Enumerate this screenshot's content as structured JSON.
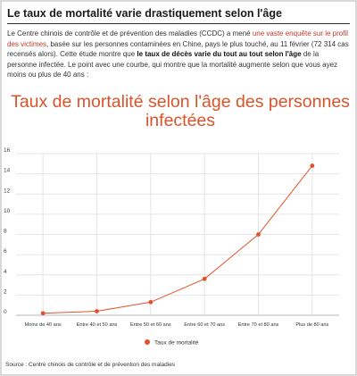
{
  "headline": "Le taux de mortalité varie drastiquement selon l'âge",
  "intro": {
    "t1": "Le Centre chinois de contrôle et de prévention des maladies (CCDC) a mené ",
    "link": "une vaste enquête sur le profil des victimes",
    "t2": ", basée sur les personnes contaminées en Chine, pays le plus touché, au 11 février (72 314 cas recensés alors). Cette étude montre que ",
    "bold": "le taux de décès varie du tout au tout selon l'âge",
    "t3": " de la personne infectée. Le point avec une courbe, qui montre que la mortalité augmente selon que vous ayez moins ou plus de 40 ans :"
  },
  "source": "Source : Centre chinois de contrôle et de prévention des maladies",
  "colors": {
    "series": "#e0522c",
    "title": "#d9542b"
  },
  "chart_data": {
    "type": "line",
    "title": "Taux de mortalité selon l'âge des personnes infectées",
    "categories": [
      "Moins de 40 ans",
      "Entre 40 et 50 ans",
      "Entre 50 et 60 ans",
      "Entre 60 et 70 ans",
      "Entre 70 et 80 ans",
      "Plus de 80 ans"
    ],
    "series": [
      {
        "name": "Taux de mortalité",
        "values": [
          0.2,
          0.4,
          1.3,
          3.6,
          8.0,
          14.8
        ]
      }
    ],
    "ylim": [
      0,
      16
    ],
    "yticks": [
      0,
      2,
      4,
      6,
      8,
      10,
      12,
      14,
      16
    ],
    "grid": true,
    "legend": "bottom"
  }
}
